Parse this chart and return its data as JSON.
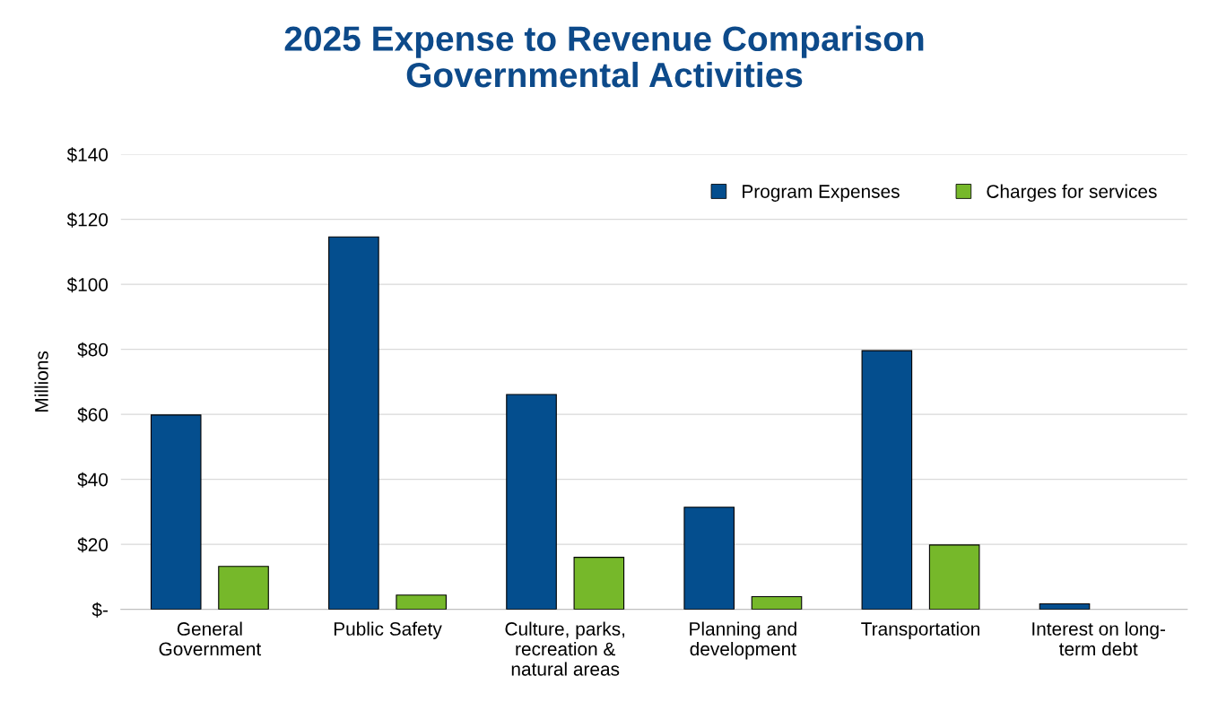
{
  "chart_data": {
    "type": "bar",
    "title": "2025 Expense to Revenue Comparison\nGovernmental Activities",
    "ylabel": "Millions",
    "categories": [
      "General\nGovernment",
      "Public Safety",
      "Culture, parks,\nrecreation &\nnatural areas",
      "Planning and\ndevelopment",
      "Transportation",
      "Interest on long-\nterm debt"
    ],
    "series": [
      {
        "name": "Program Expenses",
        "color": "#044e8e",
        "values": [
          59.8,
          114.6,
          66.1,
          31.4,
          79.6,
          1.7
        ]
      },
      {
        "name": "Charges for services",
        "color": "#76b82a",
        "values": [
          13.2,
          4.4,
          16.0,
          3.9,
          19.8,
          null
        ]
      }
    ],
    "ylim": [
      0,
      140
    ],
    "yticks": [
      {
        "value": 0,
        "label": "$-"
      },
      {
        "value": 20,
        "label": "$20"
      },
      {
        "value": 40,
        "label": "$40"
      },
      {
        "value": 60,
        "label": "$60"
      },
      {
        "value": 80,
        "label": "$80"
      },
      {
        "value": 100,
        "label": "$100"
      },
      {
        "value": 120,
        "label": "$120"
      },
      {
        "value": 140,
        "label": "$140"
      }
    ],
    "grid": "y",
    "legend": "top right"
  }
}
